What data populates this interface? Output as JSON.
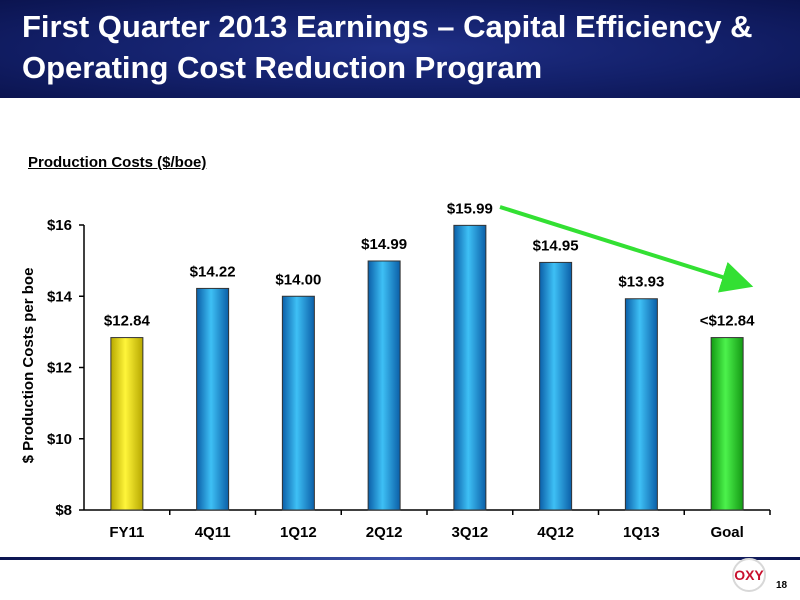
{
  "header": {
    "title": "First Quarter 2013 Earnings – Capital Efficiency &\nOperating Cost Reduction Program"
  },
  "chart_data": {
    "type": "bar",
    "title": "Production Costs ($/boe)",
    "ylabel": "$ Production Costs per boe",
    "xlabel": "",
    "ylim": [
      8,
      16
    ],
    "yticks": [
      "$8",
      "$10",
      "$12",
      "$14",
      "$16"
    ],
    "categories": [
      "FY11",
      "4Q11",
      "1Q12",
      "2Q12",
      "3Q12",
      "4Q12",
      "1Q13",
      "Goal"
    ],
    "values": [
      12.84,
      14.22,
      14.0,
      14.99,
      15.99,
      14.95,
      13.93,
      12.84
    ],
    "data_labels": [
      "$12.84",
      "$14.22",
      "$14.00",
      "$14.99",
      "$15.99",
      "$14.95",
      "$13.93",
      "<$12.84"
    ],
    "bar_colors": [
      "#f2e600",
      "#1a9ad9",
      "#1a9ad9",
      "#1a9ad9",
      "#1a9ad9",
      "#1a9ad9",
      "#1a9ad9",
      "#2bd22b"
    ],
    "trend_arrow_color": "#33e033",
    "grid": false,
    "legend": "none"
  },
  "footer": {
    "logo_text": "OXY",
    "page_number": "18"
  }
}
